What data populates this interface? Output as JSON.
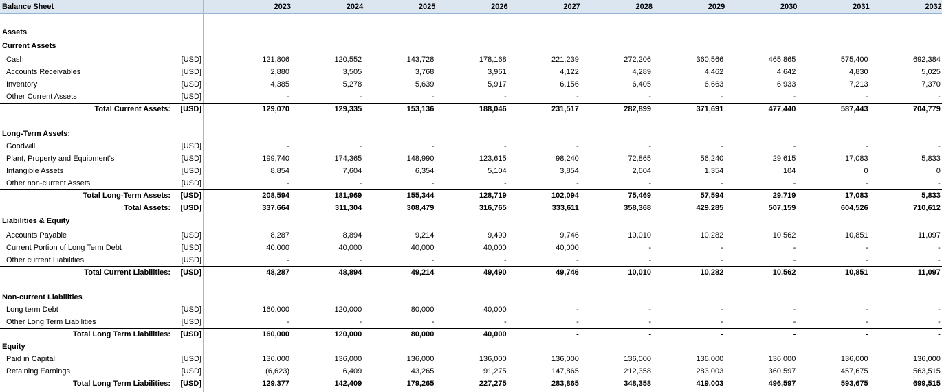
{
  "header": {
    "title": "Balance Sheet",
    "years": [
      "2023",
      "2024",
      "2025",
      "2026",
      "2027",
      "2028",
      "2029",
      "2030",
      "2031",
      "2032"
    ]
  },
  "rows": [
    {
      "heading": "Assets"
    },
    {
      "heading": "Current Assets"
    },
    {
      "item": "Cash",
      "unit": "[USD]",
      "values": [
        "121,806",
        "120,552",
        "143,728",
        "178,168",
        "221,239",
        "272,206",
        "360,566",
        "465,865",
        "575,400",
        "692,384"
      ]
    },
    {
      "item": "Accounts Receivables",
      "unit": "[USD]",
      "values": [
        "2,880",
        "3,505",
        "3,768",
        "3,961",
        "4,122",
        "4,289",
        "4,462",
        "4,642",
        "4,830",
        "5,025"
      ]
    },
    {
      "item": "Inventory",
      "unit": "[USD]",
      "values": [
        "4,385",
        "5,278",
        "5,639",
        "5,917",
        "6,156",
        "6,405",
        "6,663",
        "6,933",
        "7,213",
        "7,370"
      ]
    },
    {
      "item": "Other Current Assets",
      "unit": "[USD]",
      "values": [
        "-",
        "-",
        "-",
        "-",
        "-",
        "-",
        "-",
        "-",
        "-",
        "-"
      ]
    },
    {
      "total": "Total Current Assets:",
      "unit": "[USD]",
      "values": [
        "129,070",
        "129,335",
        "153,136",
        "188,046",
        "231,517",
        "282,899",
        "371,691",
        "477,440",
        "587,443",
        "704,779"
      ]
    },
    {
      "heading": "Long-Term Assets:"
    },
    {
      "item": "Goodwill",
      "unit": "[USD]",
      "values": [
        "-",
        "-",
        "-",
        "-",
        "-",
        "-",
        "-",
        "-",
        "-",
        "-"
      ]
    },
    {
      "item": "Plant, Property and Equipment's",
      "unit": "[USD]",
      "values": [
        "199,740",
        "174,365",
        "148,990",
        "123,615",
        "98,240",
        "72,865",
        "56,240",
        "29,615",
        "17,083",
        "5,833"
      ]
    },
    {
      "item": "Intangible Assets",
      "unit": "[USD]",
      "values": [
        "8,854",
        "7,604",
        "6,354",
        "5,104",
        "3,854",
        "2,604",
        "1,354",
        "104",
        "0",
        "0"
      ]
    },
    {
      "item": "Other non-current Assets",
      "unit": "[USD]",
      "values": [
        "-",
        "-",
        "-",
        "-",
        "-",
        "-",
        "-",
        "-",
        "-",
        "-"
      ]
    },
    {
      "total": "Total Long-Term Assets:",
      "unit": "[USD]",
      "values": [
        "208,594",
        "181,969",
        "155,344",
        "128,719",
        "102,094",
        "75,469",
        "57,594",
        "29,719",
        "17,083",
        "5,833"
      ]
    },
    {
      "total": "Total Assets:",
      "unit": "[USD]",
      "values": [
        "337,664",
        "311,304",
        "308,479",
        "316,765",
        "333,611",
        "358,368",
        "429,285",
        "507,159",
        "604,526",
        "710,612"
      ]
    },
    {
      "heading": "Liabilities & Equity"
    },
    {
      "item": "Accounts Payable",
      "unit": "[USD]",
      "values": [
        "8,287",
        "8,894",
        "9,214",
        "9,490",
        "9,746",
        "10,010",
        "10,282",
        "10,562",
        "10,851",
        "11,097"
      ]
    },
    {
      "item": "Current Portion of Long Term Debt",
      "unit": "[USD]",
      "values": [
        "40,000",
        "40,000",
        "40,000",
        "40,000",
        "40,000",
        "-",
        "-",
        "-",
        "-",
        "-"
      ]
    },
    {
      "item": "Other current Liabilities",
      "unit": "[USD]",
      "values": [
        "-",
        "-",
        "-",
        "-",
        "-",
        "-",
        "-",
        "-",
        "-",
        "-"
      ]
    },
    {
      "total": "Total Current Liabilities:",
      "unit": "[USD]",
      "values": [
        "48,287",
        "48,894",
        "49,214",
        "49,490",
        "49,746",
        "10,010",
        "10,282",
        "10,562",
        "10,851",
        "11,097"
      ]
    },
    {
      "heading": "Non-current Liabilities"
    },
    {
      "item": "Long term Debt",
      "unit": "[USD]",
      "values": [
        "160,000",
        "120,000",
        "80,000",
        "40,000",
        "-",
        "-",
        "-",
        "-",
        "-",
        "-"
      ]
    },
    {
      "item": "Other Long Term Liabilities",
      "unit": "[USD]",
      "values": [
        "-",
        "-",
        "-",
        "-",
        "-",
        "-",
        "-",
        "-",
        "-",
        "-"
      ]
    },
    {
      "total": "Total Long Term Liabilities:",
      "unit": "[USD]",
      "values": [
        "160,000",
        "120,000",
        "80,000",
        "40,000",
        "-",
        "-",
        "-",
        "-",
        "-",
        "-"
      ]
    },
    {
      "heading": "Equity"
    },
    {
      "item": "Paid in Capital",
      "unit": "[USD]",
      "values": [
        "136,000",
        "136,000",
        "136,000",
        "136,000",
        "136,000",
        "136,000",
        "136,000",
        "136,000",
        "136,000",
        "136,000"
      ]
    },
    {
      "item": "Retaining Earnings",
      "unit": "[USD]",
      "values": [
        "(6,623)",
        "6,409",
        "43,265",
        "91,275",
        "147,865",
        "212,358",
        "283,003",
        "360,597",
        "457,675",
        "563,515"
      ]
    },
    {
      "total": "Total Long Term Liabilities:",
      "unit": "[USD]",
      "values": [
        "129,377",
        "142,409",
        "179,265",
        "227,275",
        "283,865",
        "348,358",
        "419,003",
        "496,597",
        "593,675",
        "699,515"
      ]
    }
  ]
}
